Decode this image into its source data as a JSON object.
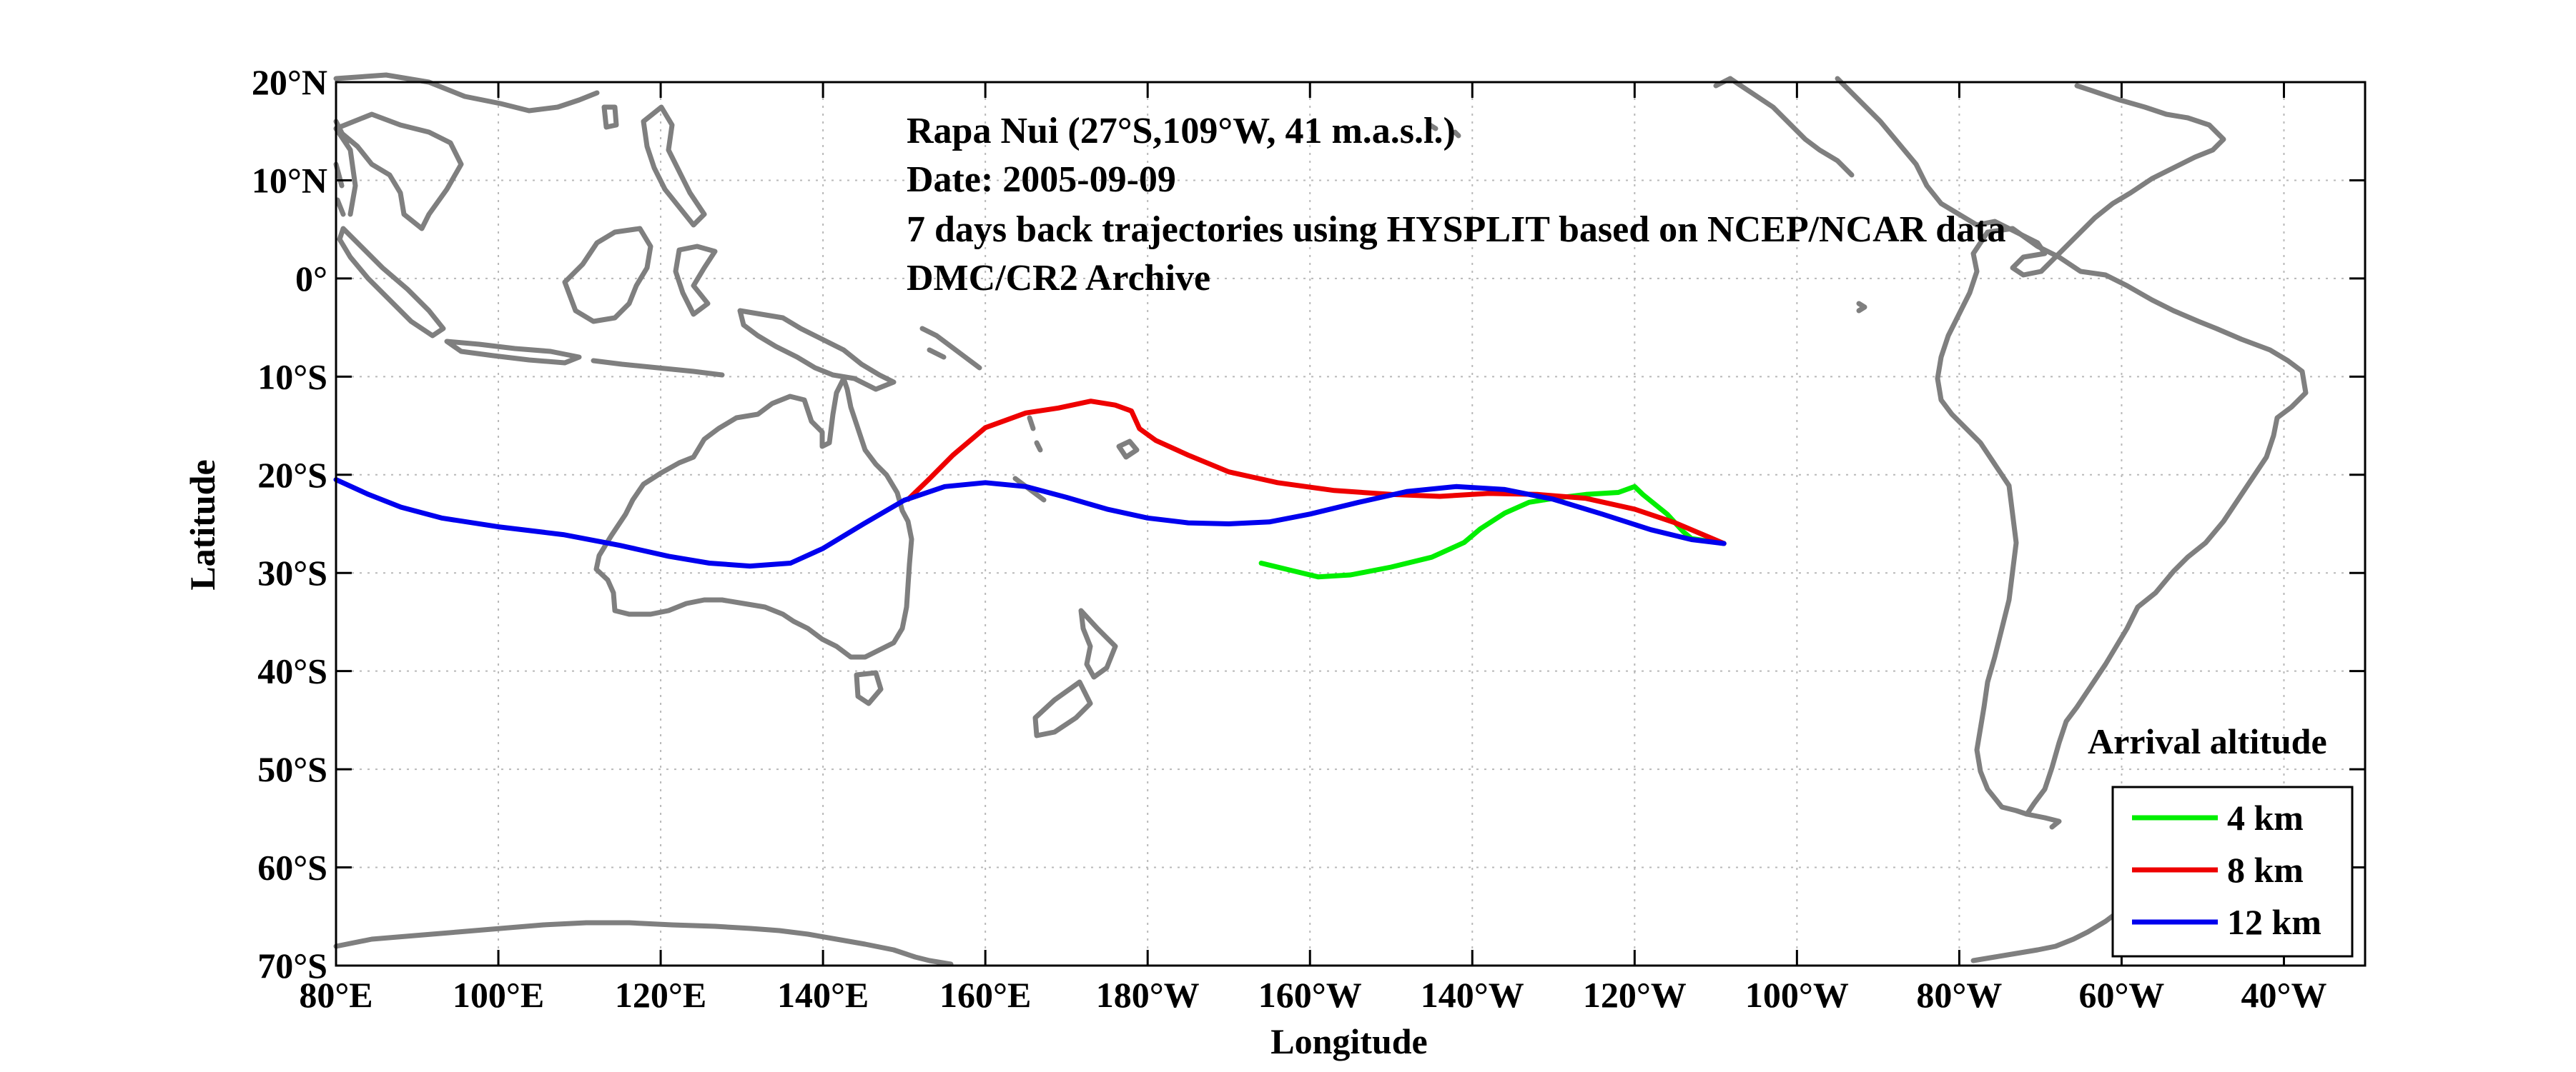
{
  "annotation": {
    "line1": "Rapa Nui (27°S,109°W, 41 m.a.s.l.)",
    "line2": "Date: 2005-09-09",
    "line3": "7 days back trajectories using HYSPLIT based on NCEP/NCAR data",
    "line4": "DMC/CR2 Archive"
  },
  "axes": {
    "xlabel": "Longitude",
    "ylabel": "Latitude",
    "xlim": [
      80,
      330
    ],
    "ylim": [
      -70,
      20
    ],
    "xticks": [
      80,
      100,
      120,
      140,
      160,
      180,
      200,
      220,
      240,
      260,
      280,
      300,
      320
    ],
    "xtick_labels": [
      "80°E",
      "100°E",
      "120°E",
      "140°E",
      "160°E",
      "180°W",
      "160°W",
      "140°W",
      "120°W",
      "100°W",
      "80°W",
      "60°W",
      "40°W"
    ],
    "yticks": [
      20,
      10,
      0,
      -10,
      -20,
      -30,
      -40,
      -50,
      -60,
      -70
    ],
    "ytick_labels": [
      "20°N",
      "10°N",
      "0°",
      "10°S",
      "20°S",
      "30°S",
      "40°S",
      "50°S",
      "60°S",
      "70°S"
    ],
    "grid": true
  },
  "legend": {
    "title": "Arrival altitude",
    "placement": "bottom-right",
    "entries": [
      "4 km",
      "8 km",
      "12 km"
    ]
  },
  "colors": {
    "coast": "#7f7f7f",
    "4 km": "#00ee00",
    "8 km": "#ee0000",
    "12 km": "#0000ee"
  },
  "chart_data": {
    "type": "line",
    "x_units": "degrees longitude east (0-360)",
    "y_units": "degrees latitude",
    "series": [
      {
        "name": "4 km",
        "points": [
          [
            194,
            -29
          ],
          [
            198,
            -29.8
          ],
          [
            201,
            -30.4
          ],
          [
            205,
            -30.2
          ],
          [
            210,
            -29.4
          ],
          [
            215,
            -28.4
          ],
          [
            219,
            -26.9
          ],
          [
            221,
            -25.5
          ],
          [
            224,
            -23.9
          ],
          [
            227,
            -22.8
          ],
          [
            230,
            -22.4
          ],
          [
            234,
            -22
          ],
          [
            238,
            -21.8
          ],
          [
            240,
            -21.2
          ],
          [
            241,
            -22
          ],
          [
            244,
            -24
          ],
          [
            246,
            -25.8
          ],
          [
            247,
            -26.5
          ],
          [
            251,
            -27
          ]
        ]
      },
      {
        "name": "8 km",
        "points": [
          [
            150.5,
            -22.5
          ],
          [
            153,
            -20.5
          ],
          [
            156,
            -18
          ],
          [
            160,
            -15.2
          ],
          [
            165,
            -13.7
          ],
          [
            169,
            -13.2
          ],
          [
            173,
            -12.5
          ],
          [
            176,
            -12.9
          ],
          [
            178,
            -13.5
          ],
          [
            179,
            -15.3
          ],
          [
            181,
            -16.5
          ],
          [
            185,
            -18
          ],
          [
            190,
            -19.7
          ],
          [
            196,
            -20.8
          ],
          [
            203,
            -21.6
          ],
          [
            210,
            -22
          ],
          [
            216,
            -22.2
          ],
          [
            222,
            -21.9
          ],
          [
            228,
            -22
          ],
          [
            234,
            -22.4
          ],
          [
            240,
            -23.5
          ],
          [
            245,
            -24.9
          ],
          [
            249,
            -26.3
          ],
          [
            251,
            -27
          ]
        ]
      },
      {
        "name": "12 km",
        "points": [
          [
            80,
            -20.5
          ],
          [
            84,
            -22
          ],
          [
            88,
            -23.3
          ],
          [
            93,
            -24.4
          ],
          [
            100,
            -25.3
          ],
          [
            108,
            -26.1
          ],
          [
            115,
            -27.2
          ],
          [
            121,
            -28.3
          ],
          [
            126,
            -29
          ],
          [
            131,
            -29.3
          ],
          [
            136,
            -29
          ],
          [
            140,
            -27.5
          ],
          [
            145,
            -25
          ],
          [
            150,
            -22.6
          ],
          [
            155,
            -21.2
          ],
          [
            160,
            -20.8
          ],
          [
            165,
            -21.2
          ],
          [
            170,
            -22.3
          ],
          [
            175,
            -23.5
          ],
          [
            180,
            -24.4
          ],
          [
            185,
            -24.9
          ],
          [
            190,
            -25
          ],
          [
            195,
            -24.8
          ],
          [
            200,
            -24
          ],
          [
            206,
            -22.8
          ],
          [
            212,
            -21.7
          ],
          [
            218,
            -21.2
          ],
          [
            224,
            -21.5
          ],
          [
            230,
            -22.5
          ],
          [
            236,
            -24
          ],
          [
            242,
            -25.6
          ],
          [
            247,
            -26.6
          ],
          [
            251,
            -27
          ]
        ]
      }
    ]
  }
}
